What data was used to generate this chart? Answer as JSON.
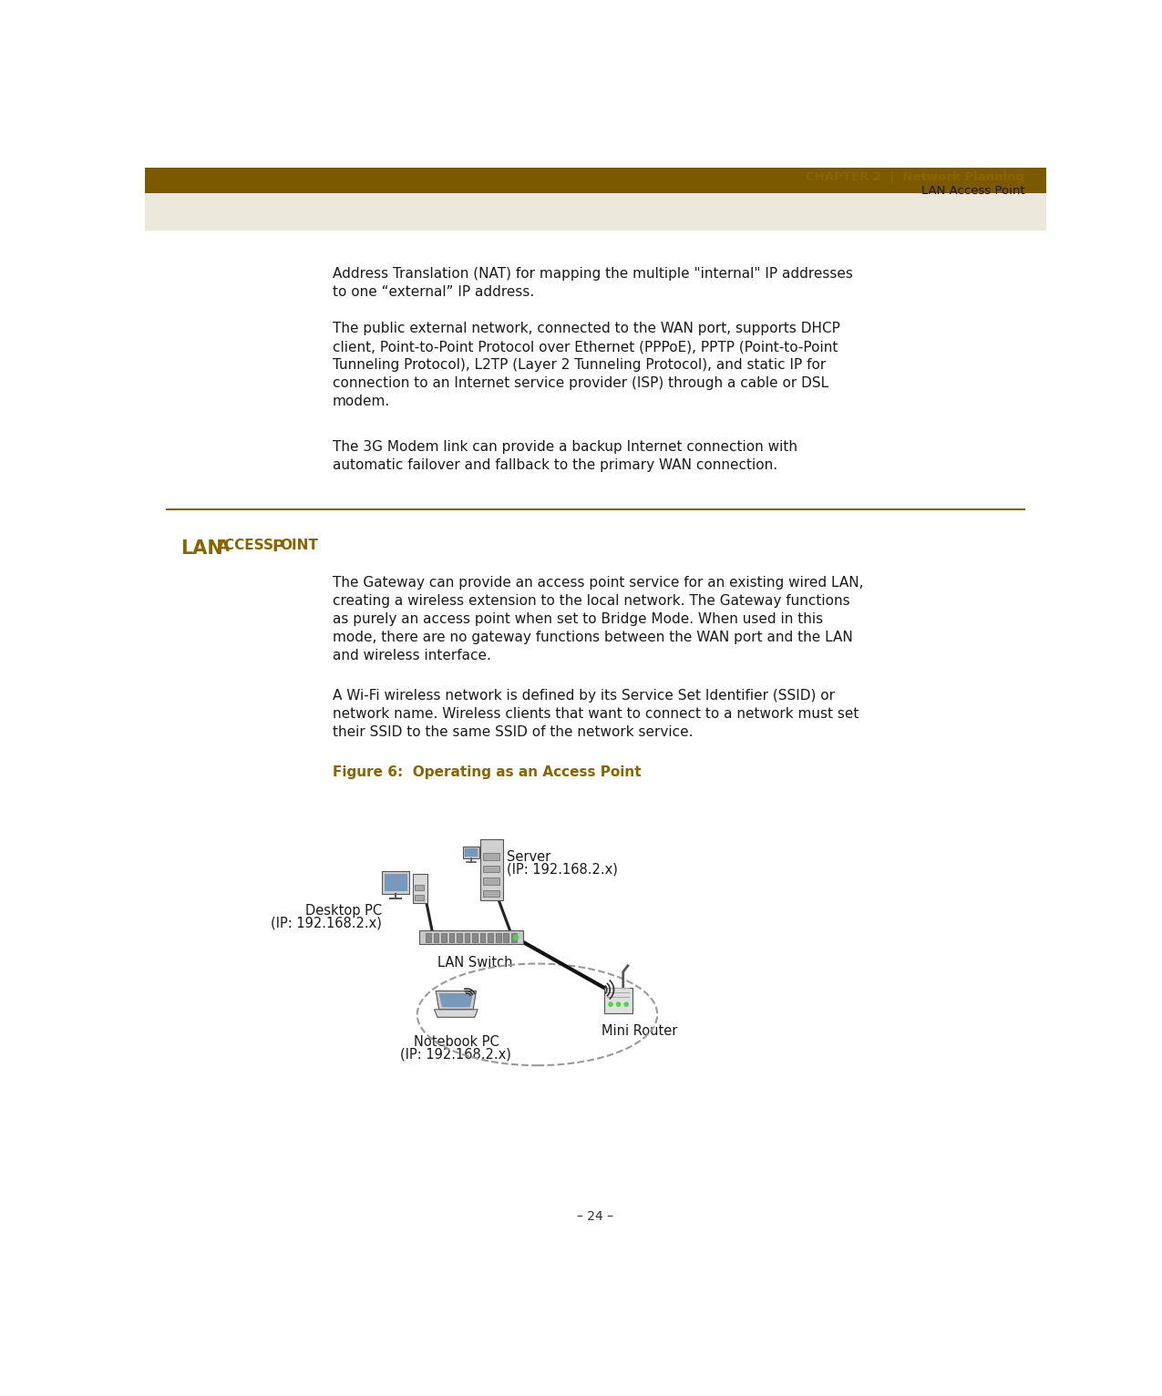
{
  "header_bar_color": "#7a5900",
  "beige_color": "#ede8dc",
  "golden_color": "#8B6400",
  "dark_gold": "#7a5900",
  "body_bg": "#ffffff",
  "text_color": "#1a1a1a",
  "page_number": "– 24 –",
  "para1_line1": "Address Translation (NAT) for mapping the multiple \"internal\" IP addresses",
  "para1_line2": "to one “external” IP address.",
  "para2_line1": "The public external network, connected to the WAN port, supports DHCP",
  "para2_line2": "client, Point-to-Point Protocol over Ethernet (PPPoE), PPTP (Point-to-Point",
  "para2_line3": "Tunneling Protocol), L2TP (Layer 2 Tunneling Protocol), and static IP for",
  "para2_line4": "connection to an Internet service provider (ISP) through a cable or DSL",
  "para2_line5": "modem.",
  "para3_line1": "The 3G Modem link can provide a backup Internet connection with",
  "para3_line2": "automatic failover and fallback to the primary WAN connection.",
  "body1_line1": "The Gateway can provide an access point service for an existing wired LAN,",
  "body1_line2": "creating a wireless extension to the local network. The Gateway functions",
  "body1_line3": "as purely an access point when set to Bridge Mode. When used in this",
  "body1_line4": "mode, there are no gateway functions between the WAN port and the LAN",
  "body1_line5": "and wireless interface.",
  "body2_line1": "A Wi-Fi wireless network is defined by its Service Set Identifier (SSID) or",
  "body2_line2": "network name. Wireless clients that want to connect to a network must set",
  "body2_line3": "their SSID to the same SSID of the network service.",
  "figure_caption": "Figure 6:  Operating as an Access Point",
  "label_server": "Server",
  "label_server_ip": "(IP: 192.168.2.x)",
  "label_desktop": "Desktop PC",
  "label_desktop_ip": "(IP: 192.168.2.x)",
  "label_switch": "LAN Switch",
  "label_notebook": "Notebook PC",
  "label_notebook_ip": "(IP: 192.168.2.x)",
  "label_router": "Mini Router"
}
